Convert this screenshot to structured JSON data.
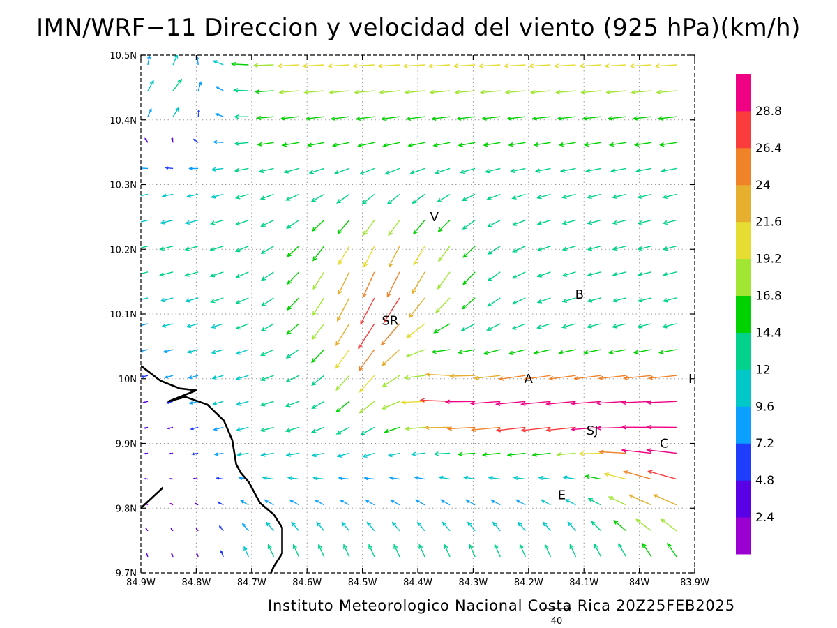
{
  "title": "IMN/WRF−11 Direccion y velocidad del viento (925 hPa)(km/h)",
  "footer": "Instituto Meteorologico Nacional Costa Rica 20Z25FEB2025",
  "chart_data": {
    "type": "vector-field",
    "x_ticks": [
      "84.9W",
      "84.8W",
      "84.7W",
      "84.6W",
      "84.5W",
      "84.4W",
      "84.3W",
      "84.2W",
      "84.1W",
      "84W",
      "83.9W"
    ],
    "y_ticks": [
      "10.5N",
      "10.4N",
      "10.3N",
      "10.2N",
      "10.1N",
      "10N",
      "9.9N",
      "9.8N",
      "9.7N"
    ],
    "lon_range": [
      -84.9,
      -83.9
    ],
    "lat_range": [
      9.7,
      10.5
    ],
    "grid": "dotted",
    "colorbar": {
      "labels": [
        "2.4",
        "4.8",
        "7.2",
        "9.6",
        "12",
        "14.4",
        "16.8",
        "19.2",
        "21.6",
        "24",
        "26.4",
        "28.8"
      ],
      "colors": [
        "#9b00d2",
        "#5a00e6",
        "#1f3dff",
        "#0aa0ff",
        "#00c8c8",
        "#00d28c",
        "#00d200",
        "#a0e632",
        "#e6dc32",
        "#e6af2d",
        "#f08228",
        "#fa3c3c",
        "#f00082"
      ]
    },
    "reference_vector": {
      "label": "40"
    },
    "places": [
      {
        "name": "V",
        "lon": -84.37,
        "lat": 10.25
      },
      {
        "name": "SR",
        "lon": -84.45,
        "lat": 10.09
      },
      {
        "name": "B",
        "lon": -84.108,
        "lat": 10.13
      },
      {
        "name": "A",
        "lon": -84.2,
        "lat": 10.0
      },
      {
        "name": "I",
        "lon": -83.908,
        "lat": 10.0
      },
      {
        "name": "SJ",
        "lon": -84.085,
        "lat": 9.92
      },
      {
        "name": "C",
        "lon": -83.955,
        "lat": 9.9
      },
      {
        "name": "E",
        "lon": -84.14,
        "lat": 9.82
      }
    ],
    "coastline": [
      [
        [
          -84.9,
          10.02
        ],
        [
          -84.865,
          9.997
        ],
        [
          -84.83,
          9.985
        ],
        [
          -84.8,
          9.982
        ],
        [
          -84.85,
          9.965
        ],
        [
          -84.82,
          9.972
        ],
        [
          -84.78,
          9.96
        ],
        [
          -84.75,
          9.935
        ],
        [
          -84.735,
          9.905
        ],
        [
          -84.728,
          9.868
        ],
        [
          -84.72,
          9.855
        ],
        [
          -84.705,
          9.84
        ],
        [
          -84.685,
          9.808
        ],
        [
          -84.66,
          9.79
        ],
        [
          -84.645,
          9.77
        ],
        [
          -84.645,
          9.73
        ],
        [
          -84.66,
          9.71
        ],
        [
          -84.67,
          9.69
        ]
      ],
      [
        [
          -84.9,
          9.8
        ],
        [
          -84.875,
          9.82
        ],
        [
          -84.86,
          9.832
        ]
      ]
    ]
  }
}
